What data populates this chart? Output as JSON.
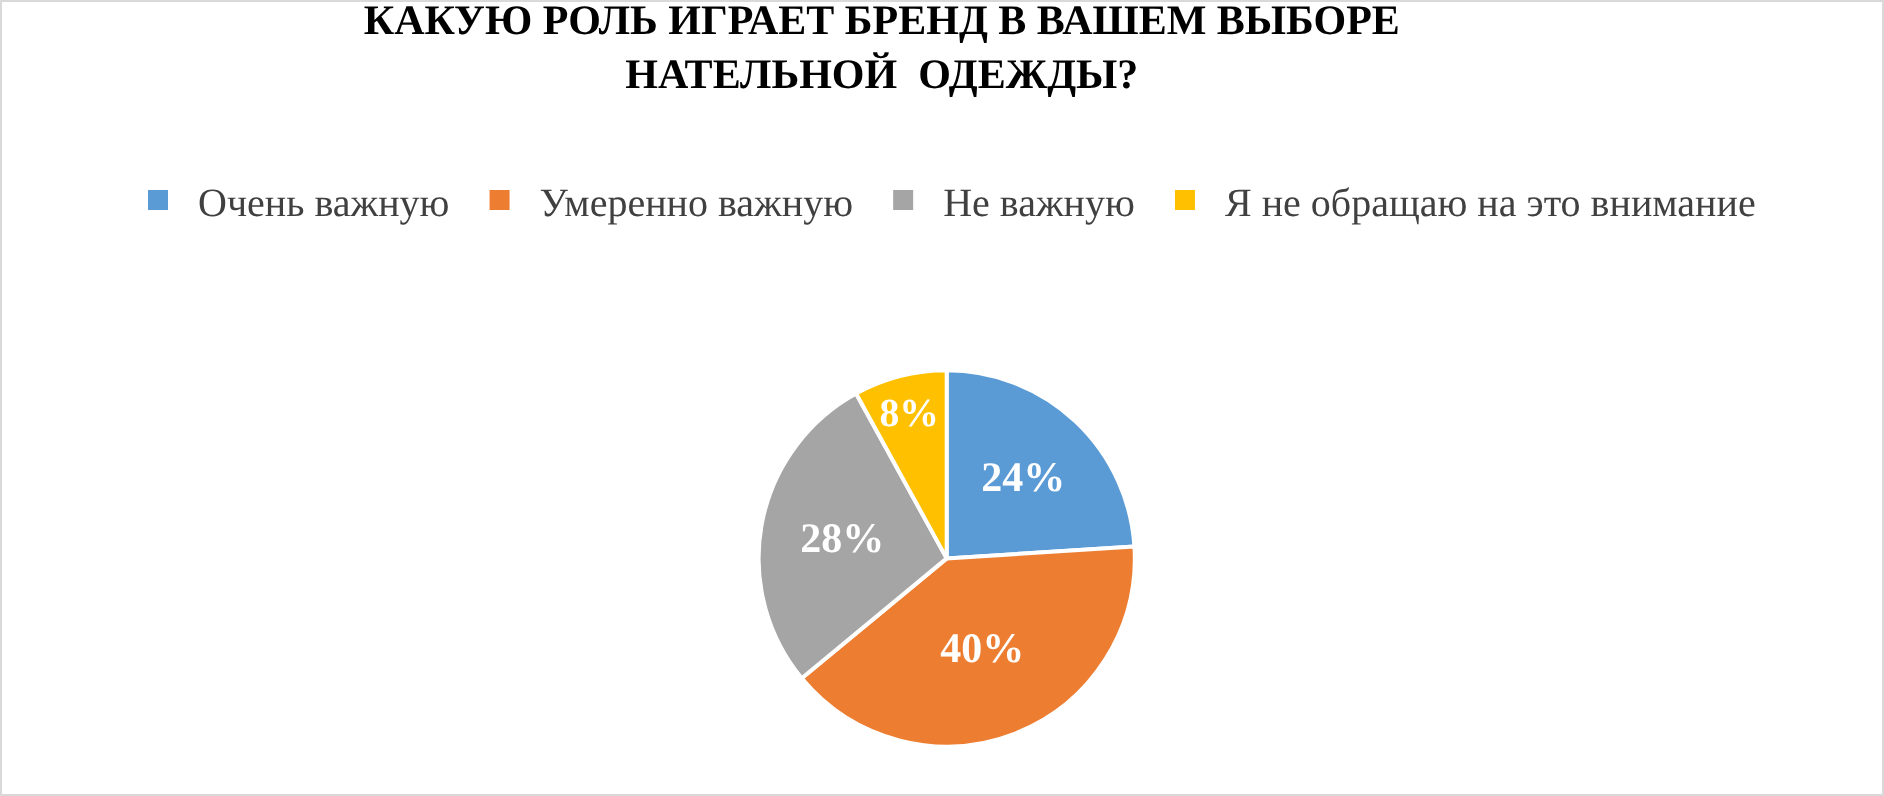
{
  "chart_data": {
    "type": "pie",
    "title": "КАКУЮ РОЛЬ ИГРАЕТ БРЕНД В ВАШЕМ ВЫБОРЕ\nНАТЕЛЬНОЙ  ОДЕЖДЫ?",
    "categories": [
      "Очень важную",
      "Умеренно важную",
      "Не важную",
      "Я не обращаю на это внимание"
    ],
    "values": [
      24,
      40,
      28,
      8
    ],
    "colors": [
      "#5b9bd5",
      "#ed7d31",
      "#a5a5a5",
      "#ffc000"
    ],
    "value_labels": [
      "24%",
      "40%",
      "28%",
      "8%"
    ],
    "legend": "top"
  }
}
